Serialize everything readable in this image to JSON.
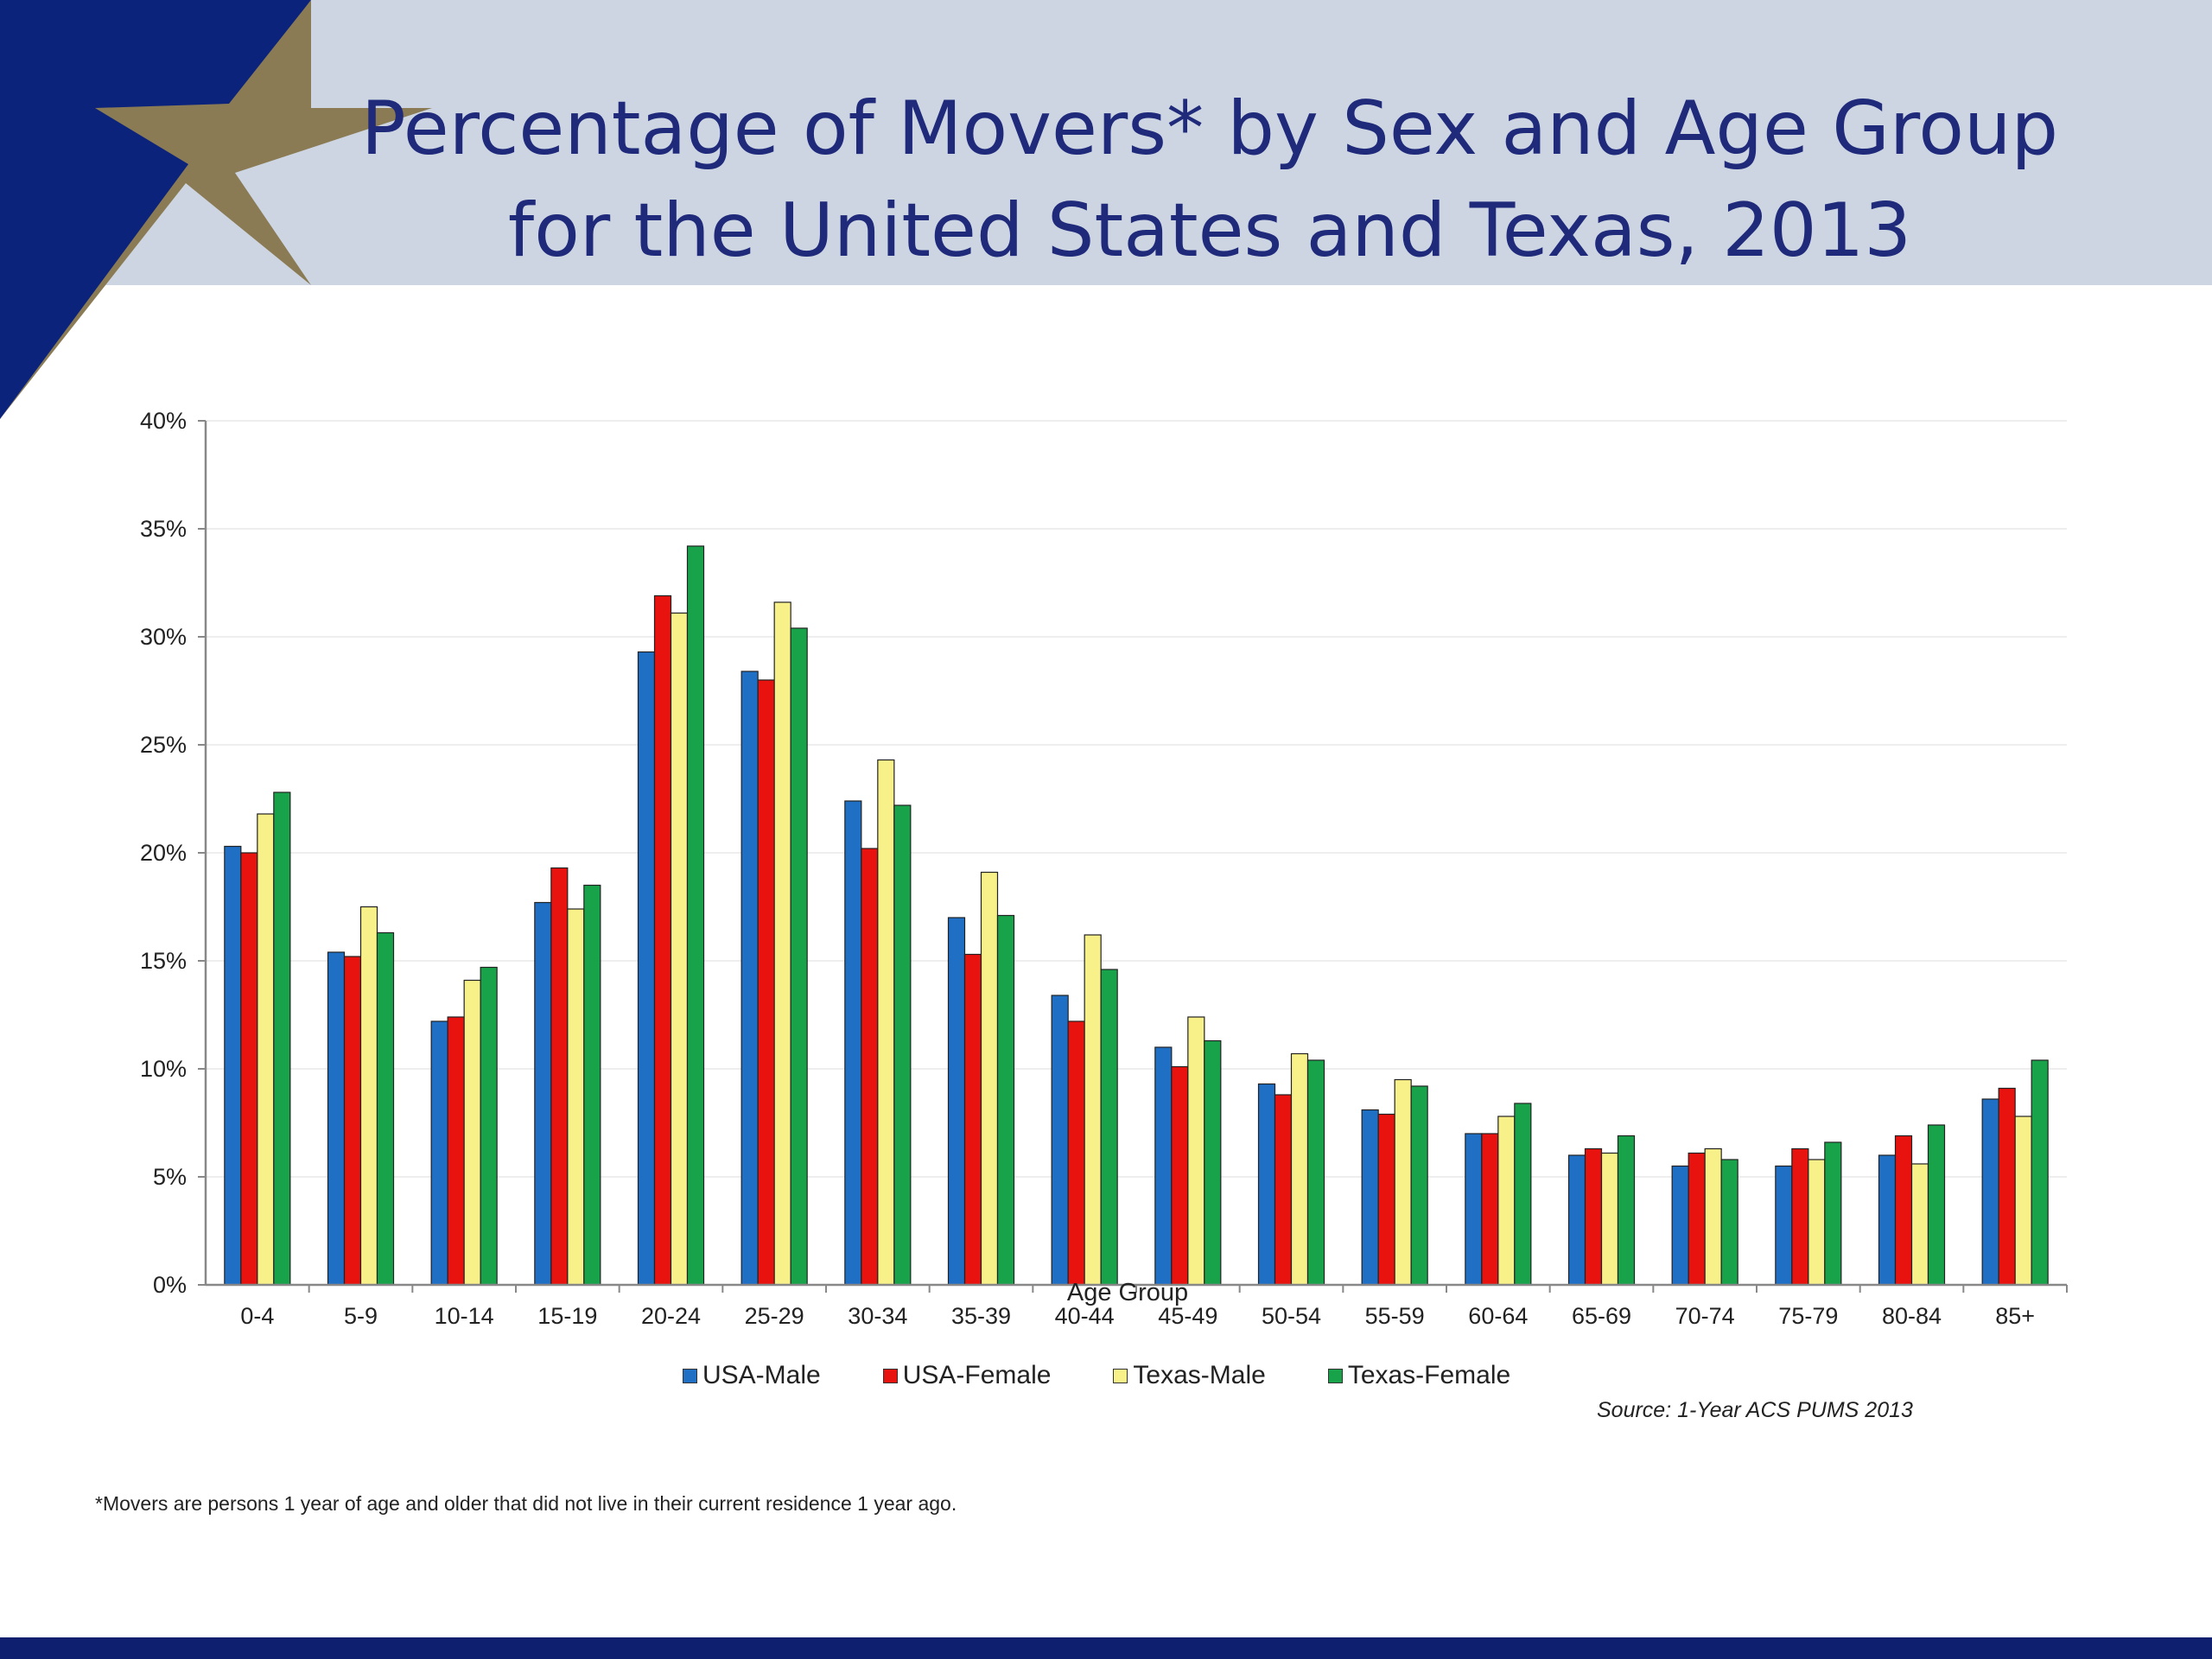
{
  "slide": {
    "title_line1": "Percentage of Movers* by Sex and Age Group",
    "title_line2": "for the United States and Texas, 2013",
    "source": "Source: 1-Year ACS PUMS 2013",
    "footnote": "*Movers are persons 1 year of age and older that did not live in their current residence 1 year ago.",
    "colors": {
      "header_band": "#cdd5e3",
      "corner": "#0c237c",
      "star": "#8a7b54",
      "title": "#1f2a7a",
      "bottom_bar": "#0d1f6e"
    }
  },
  "chart_data": {
    "type": "bar",
    "title": "",
    "xlabel": "Age Group",
    "ylabel": "",
    "ylim": [
      0,
      40
    ],
    "yticks": [
      "0%",
      "5%",
      "10%",
      "15%",
      "20%",
      "25%",
      "30%",
      "35%",
      "40%"
    ],
    "grid": true,
    "legend_position": "bottom",
    "categories": [
      "0-4",
      "5-9",
      "10-14",
      "15-19",
      "20-24",
      "25-29",
      "30-34",
      "35-39",
      "40-44",
      "45-49",
      "50-54",
      "55-59",
      "60-64",
      "65-69",
      "70-74",
      "75-79",
      "80-84",
      "85+"
    ],
    "series": [
      {
        "name": "USA-Male",
        "color": "#1f6fc5",
        "values": [
          20.3,
          15.4,
          12.2,
          17.7,
          29.3,
          28.4,
          22.4,
          17.0,
          13.4,
          11.0,
          9.3,
          8.1,
          7.0,
          6.0,
          5.5,
          5.5,
          6.0,
          8.6
        ]
      },
      {
        "name": "USA-Female",
        "color": "#e8120e",
        "values": [
          20.0,
          15.2,
          12.4,
          19.3,
          31.9,
          28.0,
          20.2,
          15.3,
          12.2,
          10.1,
          8.8,
          7.9,
          7.0,
          6.3,
          6.1,
          6.3,
          6.9,
          9.1
        ]
      },
      {
        "name": "Texas-Male",
        "color": "#f8f18a",
        "values": [
          21.8,
          17.5,
          14.1,
          17.4,
          31.1,
          31.6,
          24.3,
          19.1,
          16.2,
          12.4,
          10.7,
          9.5,
          7.8,
          6.1,
          6.3,
          5.8,
          5.6,
          7.8
        ]
      },
      {
        "name": "Texas-Female",
        "color": "#18a34a",
        "values": [
          22.8,
          16.3,
          14.7,
          18.5,
          34.2,
          30.4,
          22.2,
          17.1,
          14.6,
          11.3,
          10.4,
          9.2,
          8.4,
          6.9,
          5.8,
          6.6,
          7.4,
          10.4
        ]
      }
    ]
  }
}
